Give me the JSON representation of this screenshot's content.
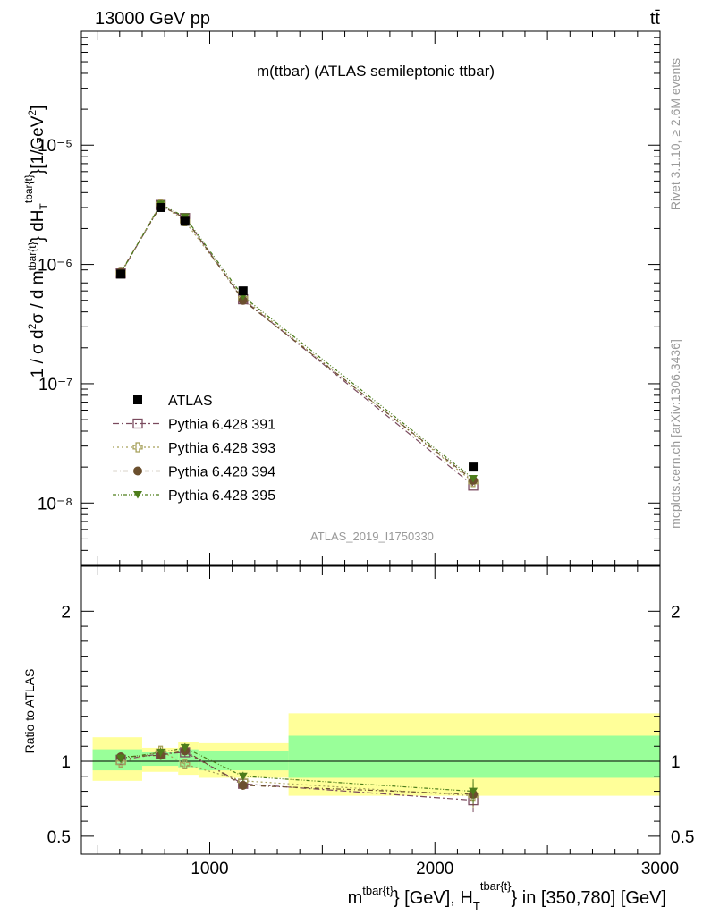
{
  "header": {
    "left": "13000 GeV pp",
    "right": "tt̄"
  },
  "side": {
    "rivet": "Rivet 3.1.10, ≥ 2.6M events",
    "mcplots": "mcplots.cern.ch [arXiv:1306.3436]"
  },
  "chart_data": [
    {
      "type": "scatter",
      "title": "m(ttbar) (ATLAS semileptonic ttbar)",
      "watermark": "ATLAS_2019_I1750330",
      "ylabel": "1 / σ d²σ / d m^{tbar{t}} dH_T^{tbar{t}} [1/GeV²]",
      "yscale": "log",
      "xlim": [
        430,
        3000
      ],
      "ylim": [
        3e-09,
        9e-05
      ],
      "ytick_labels": [
        "10⁻⁸",
        "10⁻⁷",
        "10⁻⁶",
        "10⁻⁵"
      ],
      "legend_position": "lower-left",
      "x": [
        605,
        782,
        890,
        1148,
        2170
      ],
      "series": [
        {
          "name": "ATLAS",
          "marker": "filled-square",
          "color": "#000000",
          "values": [
            8.3e-07,
            3e-06,
            2.3e-06,
            6e-07,
            2e-08
          ]
        },
        {
          "name": "Pythia 6.428 391",
          "marker": "open-square",
          "color": "#7a4a5e",
          "values": [
            8.4e-07,
            3.15e-06,
            2.45e-06,
            5.1e-07,
            1.4e-08
          ]
        },
        {
          "name": "Pythia 6.428 393",
          "marker": "open-cross",
          "color": "#a6a05a",
          "values": [
            8.5e-07,
            3.2e-06,
            2.3e-06,
            5.2e-07,
            1.5e-08
          ]
        },
        {
          "name": "Pythia 6.428 394",
          "marker": "filled-circle",
          "color": "#6b4f2e",
          "values": [
            8.6e-07,
            3.1e-06,
            2.45e-06,
            5e-07,
            1.55e-08
          ]
        },
        {
          "name": "Pythia 6.428 395",
          "marker": "filled-triangle-down",
          "color": "#4d7d1b",
          "values": [
            8.45e-07,
            3.2e-06,
            2.5e-06,
            5.4e-07,
            1.6e-08
          ]
        }
      ]
    },
    {
      "type": "scatter",
      "ylabel": "Ratio to ATLAS",
      "xlabel": "m^{tbar{t}} [GeV], H_T^{tbar{t}} in [350,780] [GeV]",
      "xlim": [
        430,
        3000
      ],
      "ylim": [
        0.38,
        2.3
      ],
      "xtick_labels": [
        "1000",
        "2000",
        "3000"
      ],
      "ytick_labels": [
        "0.5",
        "1",
        "2"
      ],
      "bands": {
        "edges": [
          480,
          700,
          860,
          950,
          1350,
          3000
        ],
        "inner": [
          [
            0.94,
            1.08
          ],
          [
            0.97,
            1.06
          ],
          [
            0.96,
            1.08
          ],
          [
            0.94,
            1.07
          ],
          [
            0.89,
            1.17
          ]
        ],
        "outer": [
          [
            0.87,
            1.16
          ],
          [
            0.93,
            1.09
          ],
          [
            0.91,
            1.13
          ],
          [
            0.89,
            1.12
          ],
          [
            0.77,
            1.32
          ]
        ],
        "inner_color": "#99ff99",
        "outer_color": "#ffff99"
      },
      "x": [
        605,
        782,
        890,
        1148,
        2170
      ],
      "series": [
        {
          "name": "Pythia 6.428 391",
          "values": [
            1.01,
            1.05,
            1.06,
            0.85,
            0.74
          ]
        },
        {
          "name": "Pythia 6.428 393",
          "values": [
            0.99,
            1.07,
            0.98,
            0.87,
            0.77
          ]
        },
        {
          "name": "Pythia 6.428 394",
          "values": [
            1.03,
            1.04,
            1.07,
            0.84,
            0.78
          ]
        },
        {
          "name": "Pythia 6.428 395",
          "values": [
            1.02,
            1.06,
            1.09,
            0.9,
            0.8
          ]
        }
      ]
    }
  ]
}
